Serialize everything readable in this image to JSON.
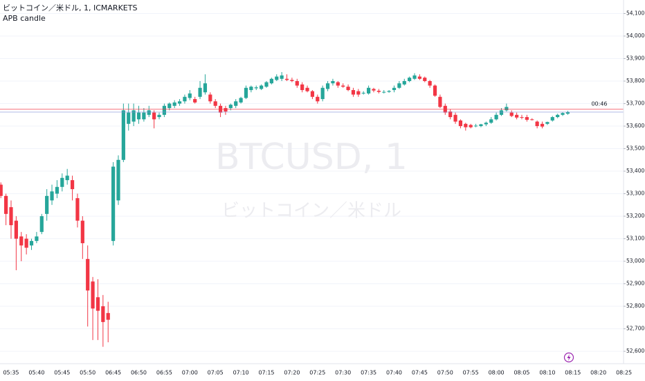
{
  "chart_data": {
    "type": "candlestick",
    "title": "ビットコイン／米ドル, 1, ICMARKETS",
    "subtitle": "APB candle",
    "watermark": "BTCUSD, 1",
    "watermark_sub": "ビットコイン／米ドル",
    "countdown": "00:46",
    "up_color": "#26a69a",
    "down_color": "#f23645",
    "grid": true,
    "ylim": [
      52545,
      54160
    ],
    "yticks": [
      {
        "value": 52600,
        "label": "52,600.00"
      },
      {
        "value": 52700,
        "label": "52,700.00"
      },
      {
        "value": 52800,
        "label": "52,800.00"
      },
      {
        "value": 52900,
        "label": "52,900.00"
      },
      {
        "value": 53000,
        "label": "53,000.00"
      },
      {
        "value": 53100,
        "label": "53,100.00"
      },
      {
        "value": 53200,
        "label": "53,200.00"
      },
      {
        "value": 53300,
        "label": "53,300.00"
      },
      {
        "value": 53400,
        "label": "53,400.00"
      },
      {
        "value": 53500,
        "label": "53,500.00"
      },
      {
        "value": 53600,
        "label": "53,600.00"
      },
      {
        "value": 53700,
        "label": "53,700.00"
      },
      {
        "value": 53800,
        "label": "53,800.00"
      },
      {
        "value": 53900,
        "label": "53,900.00"
      },
      {
        "value": 54000,
        "label": "54,000.00"
      },
      {
        "value": 54100,
        "label": "54,100.00"
      }
    ],
    "price_lines": [
      {
        "value": 53675,
        "color": "#f23645"
      },
      {
        "value": 53662,
        "color": "#7e8bd6"
      }
    ],
    "categories": [
      null,
      null,
      "05:35",
      null,
      null,
      null,
      null,
      "05:40",
      null,
      null,
      null,
      null,
      "05:45",
      null,
      null,
      null,
      null,
      "05:50",
      null,
      null,
      null,
      null,
      "06:45",
      null,
      null,
      null,
      null,
      "06:50",
      null,
      null,
      null,
      null,
      "06:55",
      null,
      null,
      null,
      null,
      "07:00",
      null,
      null,
      null,
      null,
      "07:05",
      null,
      null,
      null,
      null,
      "07:10",
      null,
      null,
      null,
      null,
      "07:15",
      null,
      null,
      null,
      null,
      "07:20",
      null,
      null,
      null,
      null,
      "07:25",
      null,
      null,
      null,
      null,
      "07:30",
      null,
      null,
      null,
      null,
      "07:35",
      null,
      null,
      null,
      null,
      "07:40",
      null,
      null,
      null,
      null,
      "07:45",
      null,
      null,
      null,
      null,
      "07:50",
      null,
      null,
      null,
      null,
      "07:55",
      null,
      null,
      null,
      null,
      "08:00",
      null,
      null,
      null,
      null,
      "08:05",
      null,
      null,
      null,
      null,
      "08:10",
      null,
      null,
      null,
      null,
      "08:15",
      null,
      null,
      null,
      null,
      "08:20",
      null,
      null,
      null,
      null,
      "08:25"
    ],
    "open": [
      53340,
      53290,
      53240,
      53180,
      53110,
      53100,
      53070,
      53090,
      53130,
      53210,
      53270,
      53300,
      53330,
      53360,
      53360,
      53280,
      53180,
      53010,
      52910,
      52840,
      52800,
      52770,
      53090,
      53270,
      53450,
      53610,
      53620,
      53630,
      53630,
      53650,
      53660,
      53640,
      53650,
      53680,
      53690,
      53700,
      53710,
      53725,
      53720,
      53730,
      53750,
      53740,
      53710,
      53690,
      53680,
      53680,
      53690,
      53705,
      53725,
      53760,
      53768,
      53765,
      53775,
      53790,
      53805,
      53810,
      53810,
      53805,
      53800,
      53785,
      53770,
      53755,
      53730,
      53720,
      53765,
      53790,
      53795,
      53780,
      53775,
      53760,
      53755,
      53745,
      53745,
      53765,
      53757,
      53750,
      53752,
      53760,
      53770,
      53785,
      53800,
      53810,
      53820,
      53815,
      53800,
      53780,
      53730,
      53690,
      53665,
      53650,
      53625,
      53610,
      53605,
      53600,
      53600,
      53608,
      53615,
      53630,
      53650,
      53670,
      53660,
      53650,
      53640,
      53640,
      53630,
      53620,
      53610,
      53610,
      53625,
      53640,
      53650,
      53655,
      null,
      null,
      null,
      null,
      null,
      null,
      null,
      null,
      null,
      null,
      null
    ],
    "high": [
      53350,
      53300,
      53270,
      53200,
      53130,
      53120,
      53100,
      53130,
      53210,
      53320,
      53340,
      53360,
      53390,
      53410,
      53380,
      53300,
      53200,
      53070,
      52930,
      52920,
      52850,
      52820,
      53440,
      53470,
      53700,
      53700,
      53700,
      53690,
      53680,
      53690,
      53670,
      53660,
      53700,
      53705,
      53715,
      53720,
      53740,
      53760,
      53730,
      53800,
      53830,
      53750,
      53720,
      53700,
      53690,
      53700,
      53720,
      53730,
      53780,
      53780,
      53780,
      53785,
      53800,
      53815,
      53830,
      53840,
      53830,
      53815,
      53810,
      53795,
      53780,
      53760,
      53740,
      53780,
      53800,
      53810,
      53800,
      53790,
      53785,
      53770,
      53765,
      53755,
      53780,
      53770,
      53765,
      53760,
      53760,
      53780,
      53800,
      53810,
      53820,
      53835,
      53830,
      53820,
      53805,
      53785,
      53740,
      53700,
      53675,
      53660,
      53630,
      53615,
      53610,
      53610,
      53610,
      53620,
      53640,
      53660,
      53680,
      53700,
      53670,
      53660,
      53650,
      53650,
      53635,
      53625,
      53620,
      53620,
      53645,
      53655,
      53662,
      53668,
      null,
      null,
      null,
      null,
      null,
      null,
      null,
      null,
      null,
      null,
      null
    ],
    "low": [
      53280,
      53160,
      53100,
      52960,
      53000,
      53030,
      53050,
      53080,
      53120,
      53180,
      53250,
      53280,
      53310,
      53340,
      53270,
      53150,
      53010,
      52710,
      52650,
      52650,
      52620,
      52640,
      53070,
      53250,
      53440,
      53580,
      53600,
      53610,
      53620,
      53640,
      53590,
      53630,
      53640,
      53670,
      53680,
      53690,
      53700,
      53715,
      53700,
      53720,
      53740,
      53700,
      53680,
      53640,
      53650,
      53670,
      53680,
      53700,
      53720,
      53750,
      53760,
      53760,
      53770,
      53785,
      53800,
      53800,
      53800,
      53795,
      53770,
      53750,
      53750,
      53720,
      53700,
      53710,
      53755,
      53780,
      53770,
      53770,
      53755,
      53730,
      53730,
      53740,
      53740,
      53750,
      53745,
      53745,
      53748,
      53750,
      53765,
      53780,
      53795,
      53805,
      53805,
      53795,
      53770,
      53730,
      53680,
      53650,
      53630,
      53610,
      53590,
      53580,
      53590,
      53595,
      53595,
      53600,
      53610,
      53625,
      53645,
      53665,
      53640,
      53630,
      53630,
      53620,
      53625,
      53590,
      53590,
      53605,
      53620,
      53635,
      53645,
      53650,
      null,
      null,
      null,
      null,
      null,
      null,
      null,
      null,
      null,
      null,
      null
    ],
    "close": [
      53290,
      53210,
      53160,
      53100,
      53070,
      53060,
      53090,
      53110,
      53200,
      53290,
      53310,
      53330,
      53370,
      53380,
      53320,
      53180,
      53080,
      52870,
      52790,
      52780,
      52730,
      52740,
      53420,
      53450,
      53670,
      53660,
      53670,
      53660,
      53660,
      53670,
      53630,
      53650,
      53690,
      53700,
      53705,
      53710,
      53730,
      53745,
      53705,
      53770,
      53790,
      53710,
      53690,
      53660,
      53665,
      53695,
      53710,
      53725,
      53770,
      53775,
      53772,
      53780,
      53795,
      53810,
      53820,
      53825,
      53805,
      53800,
      53780,
      53760,
      53755,
      53730,
      53710,
      53770,
      53790,
      53800,
      53780,
      53775,
      53760,
      53740,
      53740,
      53748,
      53770,
      53758,
      53752,
      53752,
      53756,
      53770,
      53790,
      53800,
      53815,
      53825,
      53810,
      53800,
      53780,
      53735,
      53685,
      53660,
      53640,
      53620,
      53600,
      53595,
      53595,
      53602,
      53608,
      53615,
      53630,
      53650,
      53670,
      53685,
      53645,
      53638,
      53637,
      53628,
      53628,
      53600,
      53598,
      53618,
      53640,
      53650,
      53658,
      53662,
      null,
      null,
      null,
      null,
      null,
      null,
      null,
      null,
      null,
      null,
      null
    ]
  }
}
